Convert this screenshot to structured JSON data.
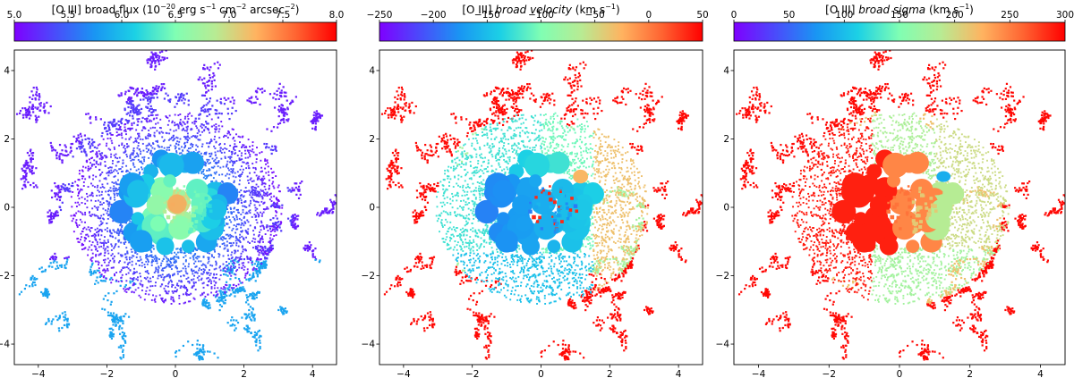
{
  "chart_data": [
    {
      "type": "heatmap",
      "colorbar": {
        "title_prefix": "[O III] broad flux (10",
        "title_exp1": "−20",
        "title_mid": " erg s",
        "title_exp2": "−1",
        "title_mid2": " cm",
        "title_exp3": "−2",
        "title_mid3": " arcsec",
        "title_exp4": "−2",
        "title_suffix": ")",
        "range": [
          5.0,
          8.0
        ],
        "ticks": [
          "5.0",
          "5.5",
          "6.0",
          "6.5",
          "7.0",
          "7.5",
          "8.0"
        ],
        "tick_values": [
          5.0,
          5.5,
          6.0,
          6.5,
          7.0,
          7.5,
          8.0
        ],
        "colormap": "rainbow"
      },
      "x_ticks": [
        "−4",
        "−2",
        "0",
        "2",
        "4"
      ],
      "y_ticks": [
        "4",
        "2",
        "0",
        "−2",
        "−4"
      ],
      "xlim": [
        -4.7,
        4.7
      ],
      "ylim": [
        -4.6,
        4.6
      ],
      "pattern": "flux"
    },
    {
      "type": "heatmap",
      "colorbar": {
        "title_prefix": "[O III] ",
        "title_italic": "broad velocity",
        "title_mid": " (km s",
        "title_exp1": "−1",
        "title_suffix": ")",
        "range": [
          -250,
          50
        ],
        "ticks": [
          "−250",
          "−200",
          "−150",
          "−100",
          "−50",
          "0",
          "50"
        ],
        "tick_values": [
          -250,
          -200,
          -150,
          -100,
          -50,
          0,
          50
        ],
        "colormap": "rainbow"
      },
      "x_ticks": [
        "−4",
        "−2",
        "0",
        "2",
        "4"
      ],
      "y_ticks": [
        "4",
        "2",
        "0",
        "−2",
        "−4"
      ],
      "xlim": [
        -4.7,
        4.7
      ],
      "ylim": [
        -4.6,
        4.6
      ],
      "pattern": "velocity"
    },
    {
      "type": "heatmap",
      "colorbar": {
        "title_prefix": "[O III] ",
        "title_italic": "broad sigma",
        "title_mid": " (km s",
        "title_exp1": "−1",
        "title_suffix": ")",
        "range": [
          0,
          300
        ],
        "ticks": [
          "0",
          "50",
          "100",
          "150",
          "200",
          "250",
          "300"
        ],
        "tick_values": [
          0,
          50,
          100,
          150,
          200,
          250,
          300
        ],
        "colormap": "rainbow"
      },
      "x_ticks": [
        "−4",
        "−2",
        "0",
        "2",
        "4"
      ],
      "y_ticks": [
        "4",
        "2",
        "0",
        "−2",
        "−4"
      ],
      "xlim": [
        -4.7,
        4.7
      ],
      "ylim": [
        -4.6,
        4.6
      ],
      "pattern": "sigma"
    }
  ]
}
